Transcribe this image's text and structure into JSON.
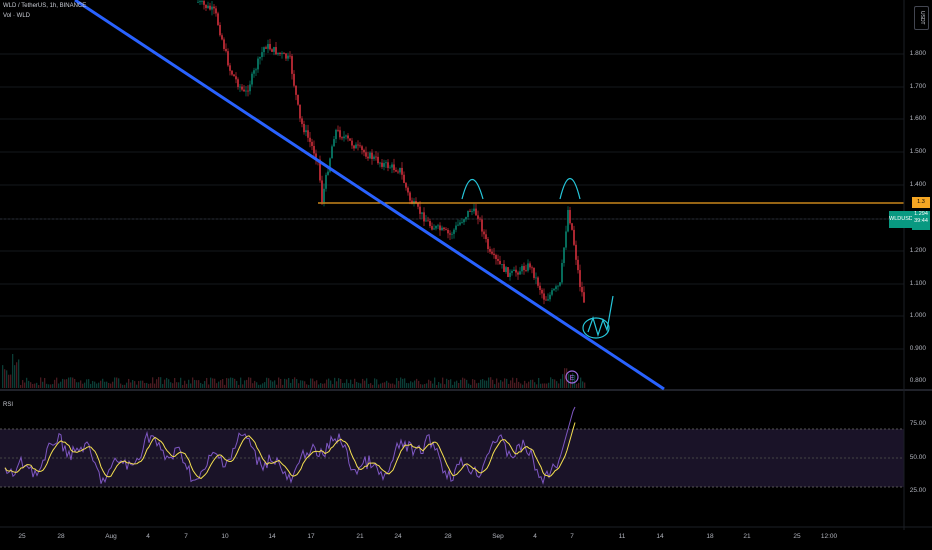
{
  "header": {
    "symbol": "WLD / TetherUS, 1h, BINANCE",
    "volume_legend": "Vol · WLD"
  },
  "rsi_label": "RSI",
  "currency_button": "USDT",
  "price_axis": {
    "labels": [
      "1.800",
      "1.700",
      "1.600",
      "1.500",
      "1.400",
      "1.200",
      "1.100",
      "1.000",
      "0.900",
      "0.800"
    ]
  },
  "rsi_axis": {
    "labels": [
      "75.00",
      "50.00",
      "25.00"
    ]
  },
  "time_axis": {
    "labels": [
      "25",
      "28",
      "Aug",
      "4",
      "7",
      "10",
      "14",
      "17",
      "21",
      "24",
      "28",
      "Sep",
      "4",
      "7",
      "11",
      "14",
      "18",
      "21",
      "25",
      "12:00"
    ]
  },
  "price_pills": {
    "alert_price": "1.3",
    "symbol_tag": "WLDUSDT",
    "last_price": "1.294",
    "countdown": "39:44"
  },
  "colors": {
    "background": "#000000",
    "trendline": "#2962ff",
    "horizontal_level": "#f0a020",
    "annotation": "#26c6da",
    "candle_up": "#089981",
    "candle_down": "#f23645",
    "rsi_line": "#7e57c2",
    "rsi_ma": "#f5e050",
    "last_price_pill": "#089981",
    "alert_pill": "#f5a623",
    "marker": "#9c6ade"
  },
  "marker_label": "E"
}
